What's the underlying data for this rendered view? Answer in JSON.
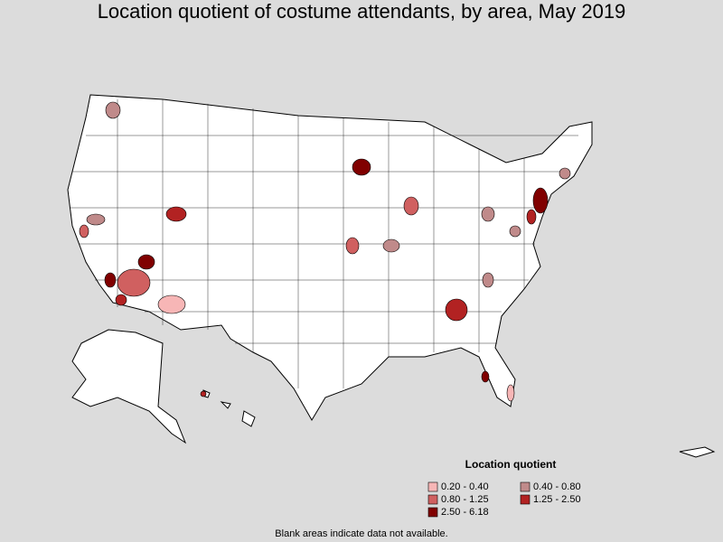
{
  "title": "Location quotient of costume attendants, by area, May 2019",
  "legend": {
    "title": "Location quotient",
    "items": [
      {
        "label": "0.20 - 0.40",
        "color": "#f7b6b6"
      },
      {
        "label": "0.40 - 0.80",
        "color": "#c08a8a"
      },
      {
        "label": "0.80 - 1.25",
        "color": "#d06060"
      },
      {
        "label": "1.25 - 2.50",
        "color": "#b22222"
      },
      {
        "label": "2.50 - 6.18",
        "color": "#800000"
      }
    ]
  },
  "footnote": "Blank areas indicate data not available."
}
